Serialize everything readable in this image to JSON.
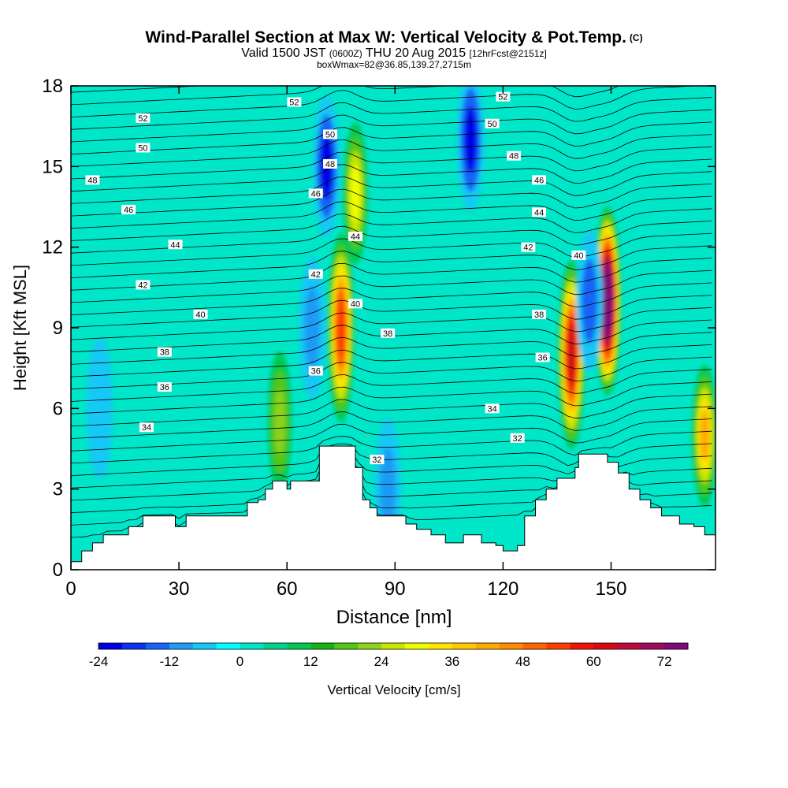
{
  "title": {
    "main": "Wind-Parallel Section at Max W: Vertical Velocity & Pot.Temp.",
    "copyright": "(C)",
    "valid_prefix": "Valid 1500 JST",
    "valid_utc": "(0600Z)",
    "valid_date": "THU 20 Aug 2015",
    "forecast": "[12hrFcst@2151z]",
    "box_info": "boxWmax=82@36.85,139.27,2715m"
  },
  "chart_data": {
    "type": "heatmap",
    "xlabel": "Distance [nm]",
    "ylabel": "Height [Kft MSL]",
    "x_range": [
      0,
      179
    ],
    "y_range": [
      0,
      18
    ],
    "x_ticks": [
      "0",
      "30",
      "60",
      "90",
      "120",
      "150"
    ],
    "y_ticks": [
      "0",
      "3",
      "6",
      "9",
      "12",
      "15",
      "18"
    ],
    "colorbar": {
      "label": "Vertical Velocity [cm/s]",
      "tick_labels": [
        "-24",
        "-12",
        "0",
        "12",
        "24",
        "36",
        "48",
        "60",
        "72"
      ],
      "levels": [
        -24,
        -20,
        -16,
        -12,
        -8,
        -4,
        0,
        4,
        8,
        12,
        16,
        20,
        24,
        28,
        32,
        36,
        40,
        44,
        48,
        52,
        56,
        60,
        64,
        68,
        72,
        76
      ],
      "colors": [
        "#0000e6",
        "#0a32f0",
        "#1464f5",
        "#1e9bf5",
        "#14c8f5",
        "#00ffff",
        "#00e6c8",
        "#00d28c",
        "#00c850",
        "#14b414",
        "#50c814",
        "#8cd21e",
        "#c8e600",
        "#f0ff00",
        "#ffe600",
        "#ffc800",
        "#ffaa00",
        "#ff8c00",
        "#ff6400",
        "#ff3c00",
        "#f01400",
        "#d70a14",
        "#be0a3c",
        "#a00a5a",
        "#820a78"
      ]
    },
    "terrain_kft": [
      [
        0,
        0.3
      ],
      [
        3,
        0.7
      ],
      [
        6,
        1
      ],
      [
        9,
        1.3
      ],
      [
        16,
        1.6
      ],
      [
        20,
        2
      ],
      [
        29,
        1.6
      ],
      [
        32,
        2
      ],
      [
        46,
        2
      ],
      [
        49,
        2.5
      ],
      [
        52,
        2.6
      ],
      [
        54,
        3
      ],
      [
        56,
        3.3
      ],
      [
        60,
        3
      ],
      [
        61,
        3.3
      ],
      [
        68,
        3.3
      ],
      [
        69,
        4.6
      ],
      [
        78,
        4.6
      ],
      [
        79,
        3.8
      ],
      [
        81,
        2.6
      ],
      [
        83,
        2.3
      ],
      [
        85,
        2
      ],
      [
        91,
        2
      ],
      [
        93,
        1.7
      ],
      [
        96,
        1.5
      ],
      [
        100,
        1.3
      ],
      [
        104,
        1
      ],
      [
        109,
        1.3
      ],
      [
        114,
        1
      ],
      [
        118,
        0.9
      ],
      [
        120,
        0.7
      ],
      [
        124,
        0.9
      ],
      [
        126,
        2
      ],
      [
        129,
        2.6
      ],
      [
        132,
        3
      ],
      [
        135,
        3.4
      ],
      [
        140,
        3.8
      ],
      [
        141,
        4.3
      ],
      [
        147,
        4.3
      ],
      [
        149,
        4
      ],
      [
        152,
        3.6
      ],
      [
        155,
        3
      ],
      [
        158,
        2.6
      ],
      [
        161,
        2.3
      ],
      [
        164,
        2
      ],
      [
        169,
        1.7
      ],
      [
        173,
        1.6
      ],
      [
        176,
        1.3
      ],
      [
        179,
        1.3
      ]
    ],
    "wind_features": [
      {
        "x": 75,
        "y": 9,
        "w": 52
      },
      {
        "x": 79,
        "y": 14,
        "w": 28
      },
      {
        "x": 71,
        "y": 15,
        "w": -24
      },
      {
        "x": 111,
        "y": 16,
        "w": -24
      },
      {
        "x": 139,
        "y": 8,
        "w": 60
      },
      {
        "x": 149,
        "y": 10,
        "w": 82
      },
      {
        "x": 144,
        "y": 10,
        "w": -16
      },
      {
        "x": 176,
        "y": 5,
        "w": 40
      },
      {
        "x": 58,
        "y": 5.5,
        "w": 20
      },
      {
        "x": 67,
        "y": 9,
        "w": -12
      },
      {
        "x": 88,
        "y": 3,
        "w": -12
      },
      {
        "x": 8,
        "y": 6,
        "w": -8
      }
    ],
    "isentrope_labels": [
      {
        "x": 20,
        "y": 16.8,
        "text": "52"
      },
      {
        "x": 62,
        "y": 17.4,
        "text": "52"
      },
      {
        "x": 120,
        "y": 17.6,
        "text": "52"
      },
      {
        "x": 20,
        "y": 15.7,
        "text": "50"
      },
      {
        "x": 72,
        "y": 16.2,
        "text": "50"
      },
      {
        "x": 117,
        "y": 16.6,
        "text": "50"
      },
      {
        "x": 6,
        "y": 14.5,
        "text": "48"
      },
      {
        "x": 72,
        "y": 15.1,
        "text": "48"
      },
      {
        "x": 123,
        "y": 15.4,
        "text": "48"
      },
      {
        "x": 16,
        "y": 13.4,
        "text": "46"
      },
      {
        "x": 68,
        "y": 14,
        "text": "46"
      },
      {
        "x": 130,
        "y": 14.5,
        "text": "46"
      },
      {
        "x": 29,
        "y": 12.1,
        "text": "44"
      },
      {
        "x": 79,
        "y": 12.4,
        "text": "44"
      },
      {
        "x": 130,
        "y": 13.3,
        "text": "44"
      },
      {
        "x": 20,
        "y": 10.6,
        "text": "42"
      },
      {
        "x": 68,
        "y": 11,
        "text": "42"
      },
      {
        "x": 127,
        "y": 12,
        "text": "42"
      },
      {
        "x": 36,
        "y": 9.5,
        "text": "40"
      },
      {
        "x": 79,
        "y": 9.9,
        "text": "40"
      },
      {
        "x": 141,
        "y": 11.7,
        "text": "40"
      },
      {
        "x": 26,
        "y": 8.1,
        "text": "38"
      },
      {
        "x": 88,
        "y": 8.8,
        "text": "38"
      },
      {
        "x": 130,
        "y": 9.5,
        "text": "38"
      },
      {
        "x": 26,
        "y": 6.8,
        "text": "36"
      },
      {
        "x": 68,
        "y": 7.4,
        "text": "36"
      },
      {
        "x": 131,
        "y": 7.9,
        "text": "36"
      },
      {
        "x": 21,
        "y": 5.3,
        "text": "34"
      },
      {
        "x": 117,
        "y": 6,
        "text": "34"
      },
      {
        "x": 85,
        "y": 4.1,
        "text": "32"
      },
      {
        "x": 124,
        "y": 4.9,
        "text": "32"
      }
    ]
  }
}
